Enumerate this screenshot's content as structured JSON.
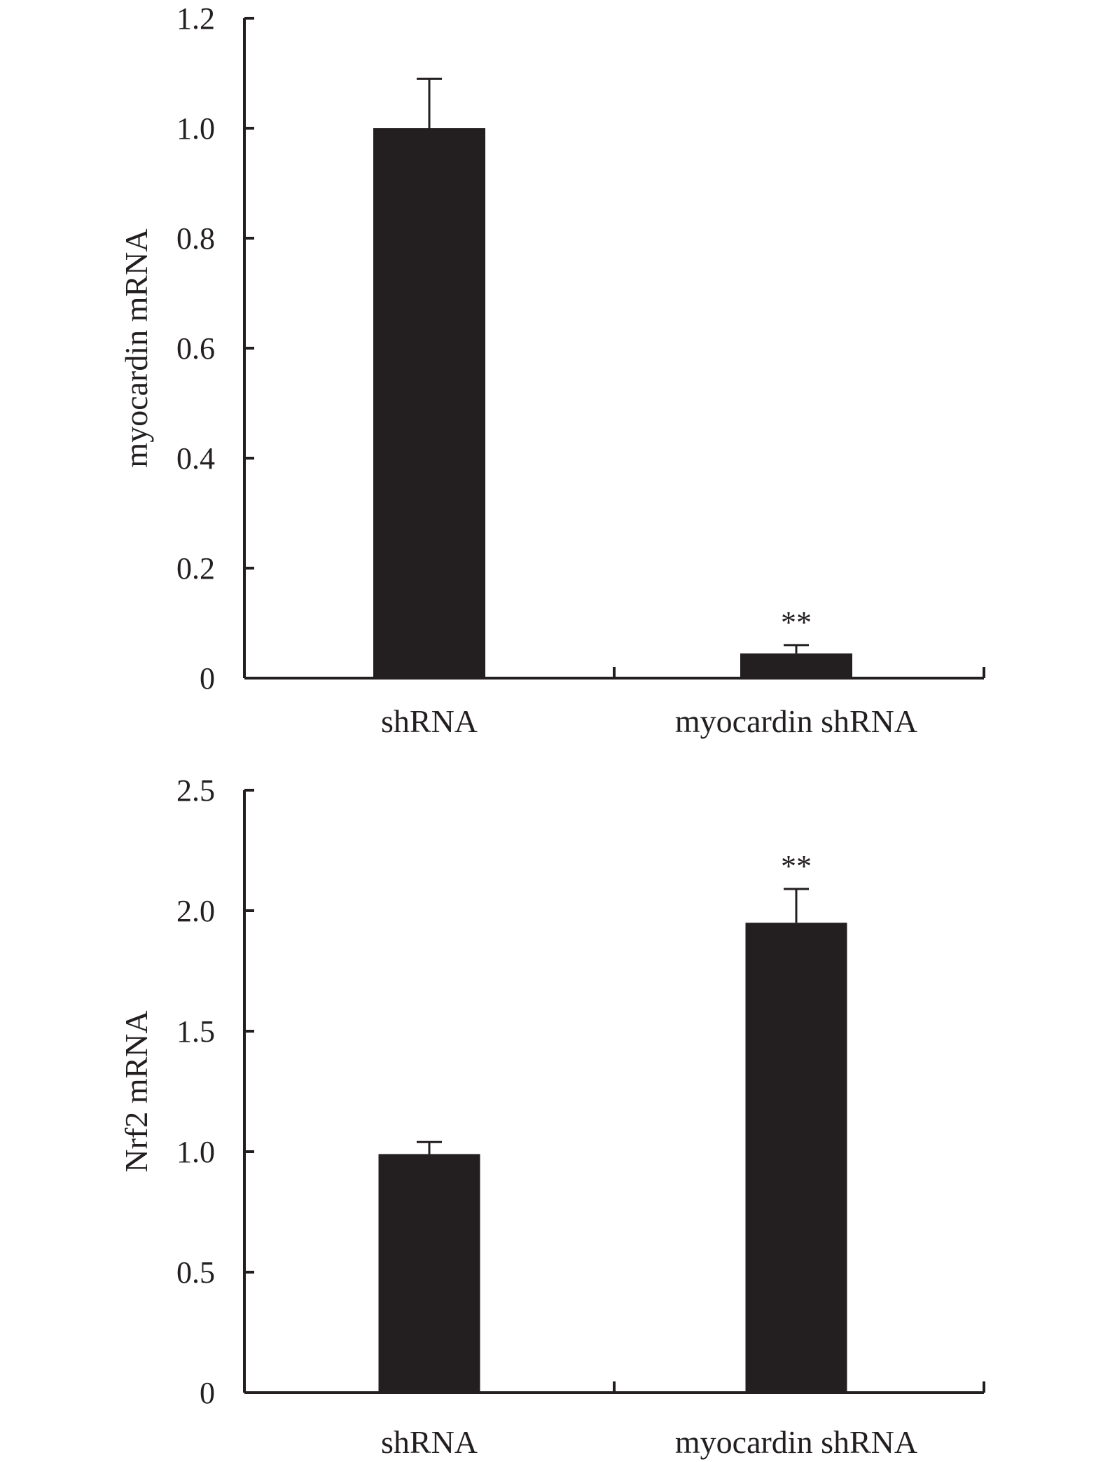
{
  "chart_data": [
    {
      "type": "bar",
      "categories": [
        "shRNA",
        "myocardin shRNA"
      ],
      "values": [
        1.0,
        0.045
      ],
      "errors": [
        0.09,
        0.015
      ],
      "significance": [
        "",
        "**"
      ],
      "ylabel": "myocardin mRNA",
      "ylim": [
        0,
        1.2
      ],
      "yticks": [
        0,
        0.2,
        0.4,
        0.6,
        0.8,
        1.0,
        1.2
      ],
      "ytick_labels": [
        "0",
        "0.2",
        "0.4",
        "0.6",
        "0.8",
        "1.0",
        "1.2"
      ],
      "bar_color": "#231f20",
      "grid": false
    },
    {
      "type": "bar",
      "categories": [
        "shRNA",
        "myocardin shRNA"
      ],
      "values": [
        0.99,
        1.95
      ],
      "errors": [
        0.05,
        0.14
      ],
      "significance": [
        "",
        "**"
      ],
      "ylabel": "Nrf2 mRNA",
      "ylim": [
        0,
        2.5
      ],
      "yticks": [
        0,
        0.5,
        1.0,
        1.5,
        2.0,
        2.5
      ],
      "ytick_labels": [
        "0",
        "0.5",
        "1.0",
        "1.5",
        "2.0",
        "2.5"
      ],
      "bar_color": "#231f20",
      "grid": false
    }
  ]
}
